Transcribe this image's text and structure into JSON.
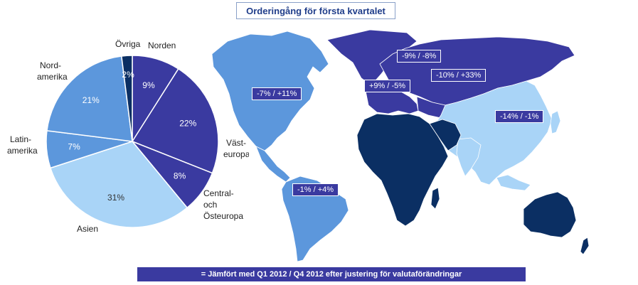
{
  "title": "Orderingång för första kvartalet",
  "footer": "= Jämfört med Q1 2012 / Q4 2012 efter justering för valutaförändringar",
  "chart_data": {
    "type": "pie",
    "title": "Orderingång för första kvartalet",
    "slices": [
      {
        "name": "Norden",
        "value": 9,
        "label": "9%",
        "color": "#3a3aa0"
      },
      {
        "name": "Väst-europa",
        "value": 22,
        "label": "22%",
        "color": "#3a3aa0"
      },
      {
        "name": "Central- och Östeuropa",
        "value": 8,
        "label": "8%",
        "color": "#3a3aa0"
      },
      {
        "name": "Asien",
        "value": 31,
        "label": "31%",
        "color": "#a9d4f7"
      },
      {
        "name": "Latin-amerika",
        "value": 7,
        "label": "7%",
        "color": "#5c97dc"
      },
      {
        "name": "Nord-amerika",
        "value": 21,
        "label": "21%",
        "color": "#5c97dc"
      },
      {
        "name": "Övriga",
        "value": 2,
        "label": "2%",
        "color": "#0b2f63"
      }
    ],
    "category_labels": {
      "norden": "Norden",
      "vast1": "Väst-",
      "vast2": "europa",
      "central1": "Central-",
      "central2": "och",
      "central3": "Östeuropa",
      "asien": "Asien",
      "latin1": "Latin-",
      "latin2": "amerika",
      "nord1": "Nord-",
      "nord2": "amerika",
      "ovriga": "Övriga"
    },
    "map_labels": {
      "north_america": "-7% / +11%",
      "south_america": "-1% / +4%",
      "nordic": "-9% / -8%",
      "western_europe": "+9% / -5%",
      "eastern_europe": "-10% / +33%",
      "asia": "-14% / -1%"
    }
  },
  "colors": {
    "dark_purple": "#3a3aa0",
    "mid_blue": "#5c97dc",
    "light_blue": "#a9d4f7",
    "navy": "#0b2f63"
  }
}
